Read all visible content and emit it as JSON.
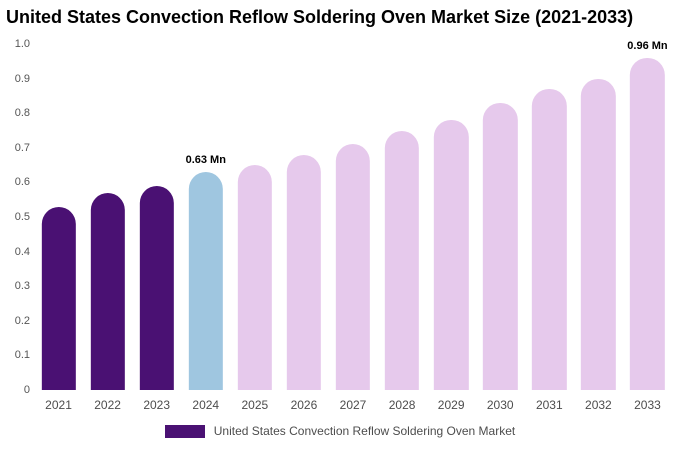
{
  "title": "United States Convection Reflow Soldering Oven Market Size (2021-2033)",
  "legend": {
    "label": "United States Convection Reflow Soldering Oven Market",
    "color": "#4a1173"
  },
  "chart_data": {
    "type": "bar",
    "title": "United States Convection Reflow Soldering Oven Market Size (2021-2033)",
    "xlabel": "",
    "ylabel": "",
    "unit": "Mn",
    "ylim": [
      0,
      1.0
    ],
    "grid": false,
    "legend_position": "bottom",
    "categories": [
      "2021",
      "2022",
      "2023",
      "2024",
      "2025",
      "2026",
      "2027",
      "2028",
      "2029",
      "2030",
      "2031",
      "2032",
      "2033"
    ],
    "values": [
      0.53,
      0.57,
      0.59,
      0.63,
      0.65,
      0.68,
      0.71,
      0.75,
      0.78,
      0.83,
      0.87,
      0.9,
      0.96
    ],
    "bar_colors": [
      "#4a1173",
      "#4a1173",
      "#4a1173",
      "#9fc6e0",
      "#e6c9ec",
      "#e6c9ec",
      "#e6c9ec",
      "#e6c9ec",
      "#e6c9ec",
      "#e6c9ec",
      "#e6c9ec",
      "#e6c9ec",
      "#e6c9ec"
    ],
    "colors": {
      "historical": "#4a1173",
      "current_year_highlight": "#9fc6e0",
      "forecast": "#e6c9ec"
    },
    "annotations": [
      {
        "category": "2024",
        "text": "0.63 Mn"
      },
      {
        "category": "2033",
        "text": "0.96 Mn"
      }
    ],
    "yticks": [
      {
        "value": 0,
        "label": "0"
      },
      {
        "value": 0.1,
        "label": "0.1"
      },
      {
        "value": 0.2,
        "label": "0.2"
      },
      {
        "value": 0.3,
        "label": "0.3"
      },
      {
        "value": 0.4,
        "label": "0.4"
      },
      {
        "value": 0.5,
        "label": "0.5"
      },
      {
        "value": 0.6,
        "label": "0.6"
      },
      {
        "value": 0.7,
        "label": "0.7"
      },
      {
        "value": 0.8,
        "label": "0.8"
      },
      {
        "value": 0.9,
        "label": "0.9"
      },
      {
        "value": 1.0,
        "label": "1.0"
      }
    ]
  }
}
